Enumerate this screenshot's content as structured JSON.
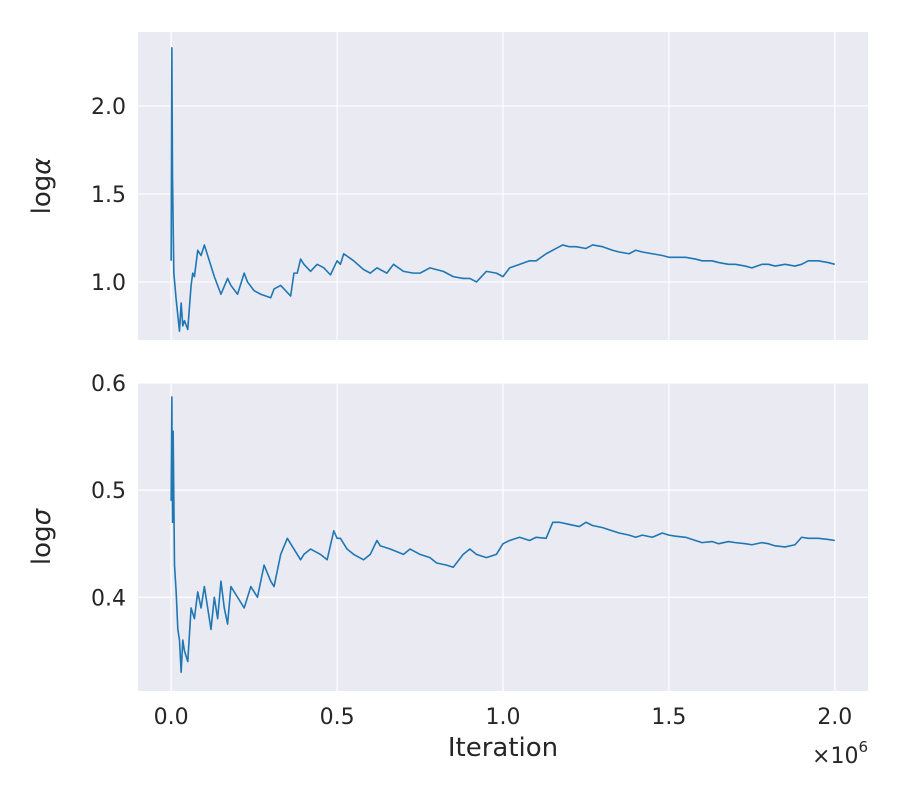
{
  "chart_data": [
    {
      "type": "line",
      "title": "",
      "xlabel": "",
      "ylabel": "logα",
      "ylabel_base": "log",
      "ylabel_symbol": "α",
      "xlim": [
        -0.1,
        2.1
      ],
      "ylim": [
        0.67,
        2.42
      ],
      "yticks": [
        1.0,
        1.5,
        2.0
      ],
      "ytick_labels": [
        "1.0",
        "1.5",
        "2.0"
      ],
      "xticks": [
        0.0,
        0.5,
        1.0,
        1.5,
        2.0
      ],
      "grid": true,
      "legend": "none",
      "color": "#1f77b4",
      "x": [
        0.0,
        0.002,
        0.004,
        0.008,
        0.015,
        0.025,
        0.03,
        0.035,
        0.04,
        0.05,
        0.06,
        0.065,
        0.07,
        0.08,
        0.09,
        0.1,
        0.11,
        0.13,
        0.15,
        0.17,
        0.18,
        0.2,
        0.22,
        0.23,
        0.25,
        0.27,
        0.3,
        0.31,
        0.33,
        0.36,
        0.37,
        0.38,
        0.39,
        0.4,
        0.42,
        0.44,
        0.46,
        0.48,
        0.5,
        0.51,
        0.52,
        0.55,
        0.58,
        0.6,
        0.62,
        0.65,
        0.67,
        0.7,
        0.73,
        0.75,
        0.78,
        0.8,
        0.82,
        0.85,
        0.88,
        0.9,
        0.92,
        0.93,
        0.95,
        0.98,
        1.0,
        1.02,
        1.05,
        1.08,
        1.1,
        1.13,
        1.16,
        1.18,
        1.2,
        1.22,
        1.25,
        1.27,
        1.3,
        1.33,
        1.35,
        1.38,
        1.4,
        1.42,
        1.45,
        1.48,
        1.5,
        1.52,
        1.55,
        1.58,
        1.6,
        1.63,
        1.65,
        1.68,
        1.7,
        1.73,
        1.75,
        1.78,
        1.8,
        1.82,
        1.85,
        1.88,
        1.9,
        1.92,
        1.95,
        1.98,
        2.0
      ],
      "y": [
        1.12,
        2.33,
        1.6,
        1.05,
        0.9,
        0.72,
        0.88,
        0.75,
        0.78,
        0.73,
        0.98,
        1.05,
        1.03,
        1.18,
        1.15,
        1.21,
        1.15,
        1.03,
        0.93,
        1.02,
        0.98,
        0.93,
        1.05,
        1.0,
        0.95,
        0.93,
        0.91,
        0.96,
        0.98,
        0.92,
        1.05,
        1.05,
        1.13,
        1.1,
        1.06,
        1.1,
        1.08,
        1.04,
        1.12,
        1.1,
        1.16,
        1.12,
        1.07,
        1.05,
        1.08,
        1.05,
        1.1,
        1.06,
        1.05,
        1.05,
        1.08,
        1.07,
        1.06,
        1.03,
        1.02,
        1.02,
        1.0,
        1.02,
        1.06,
        1.05,
        1.03,
        1.08,
        1.1,
        1.12,
        1.12,
        1.16,
        1.19,
        1.21,
        1.2,
        1.2,
        1.19,
        1.21,
        1.2,
        1.18,
        1.17,
        1.16,
        1.18,
        1.17,
        1.16,
        1.15,
        1.14,
        1.14,
        1.14,
        1.13,
        1.12,
        1.12,
        1.11,
        1.1,
        1.1,
        1.09,
        1.08,
        1.1,
        1.1,
        1.09,
        1.1,
        1.09,
        1.1,
        1.12,
        1.12,
        1.11,
        1.1
      ]
    },
    {
      "type": "line",
      "title": "",
      "xlabel": "Iteration",
      "ylabel": "logσ",
      "ylabel_base": "log",
      "ylabel_symbol": "σ",
      "xlim": [
        -0.1,
        2.1
      ],
      "ylim": [
        0.3125,
        0.6
      ],
      "yticks": [
        0.4,
        0.5,
        0.6
      ],
      "ytick_labels": [
        "0.4",
        "0.5",
        "0.6"
      ],
      "xticks": [
        0.0,
        0.5,
        1.0,
        1.5,
        2.0
      ],
      "xtick_labels": [
        "0.0",
        "0.5",
        "1.0",
        "1.5",
        "2.0"
      ],
      "x_offset_base": "×10",
      "x_offset_exp": "6",
      "grid": true,
      "legend": "none",
      "color": "#1f77b4",
      "x": [
        0.0,
        0.002,
        0.004,
        0.006,
        0.01,
        0.015,
        0.02,
        0.025,
        0.03,
        0.035,
        0.04,
        0.05,
        0.06,
        0.07,
        0.08,
        0.09,
        0.1,
        0.12,
        0.13,
        0.14,
        0.15,
        0.16,
        0.17,
        0.18,
        0.2,
        0.22,
        0.24,
        0.26,
        0.28,
        0.3,
        0.31,
        0.33,
        0.35,
        0.37,
        0.39,
        0.4,
        0.42,
        0.45,
        0.47,
        0.49,
        0.5,
        0.51,
        0.53,
        0.55,
        0.58,
        0.6,
        0.62,
        0.63,
        0.66,
        0.7,
        0.72,
        0.75,
        0.78,
        0.8,
        0.83,
        0.85,
        0.88,
        0.9,
        0.92,
        0.95,
        0.98,
        1.0,
        1.02,
        1.05,
        1.08,
        1.1,
        1.13,
        1.15,
        1.17,
        1.2,
        1.23,
        1.25,
        1.27,
        1.3,
        1.33,
        1.35,
        1.38,
        1.4,
        1.42,
        1.45,
        1.48,
        1.5,
        1.52,
        1.55,
        1.58,
        1.6,
        1.63,
        1.65,
        1.68,
        1.7,
        1.73,
        1.75,
        1.78,
        1.8,
        1.82,
        1.85,
        1.88,
        1.9,
        1.92,
        1.95,
        1.98,
        2.0
      ],
      "y": [
        0.49,
        0.587,
        0.47,
        0.555,
        0.43,
        0.405,
        0.37,
        0.36,
        0.33,
        0.36,
        0.35,
        0.34,
        0.39,
        0.38,
        0.405,
        0.39,
        0.41,
        0.37,
        0.4,
        0.38,
        0.415,
        0.39,
        0.375,
        0.41,
        0.4,
        0.39,
        0.41,
        0.4,
        0.43,
        0.415,
        0.41,
        0.44,
        0.455,
        0.445,
        0.435,
        0.44,
        0.445,
        0.44,
        0.435,
        0.462,
        0.455,
        0.455,
        0.445,
        0.44,
        0.435,
        0.44,
        0.453,
        0.448,
        0.445,
        0.44,
        0.445,
        0.44,
        0.437,
        0.432,
        0.43,
        0.428,
        0.44,
        0.445,
        0.44,
        0.437,
        0.44,
        0.45,
        0.453,
        0.456,
        0.453,
        0.456,
        0.455,
        0.47,
        0.47,
        0.468,
        0.466,
        0.47,
        0.467,
        0.465,
        0.462,
        0.46,
        0.458,
        0.456,
        0.458,
        0.456,
        0.46,
        0.458,
        0.457,
        0.456,
        0.453,
        0.451,
        0.452,
        0.45,
        0.452,
        0.451,
        0.45,
        0.449,
        0.451,
        0.45,
        0.448,
        0.447,
        0.449,
        0.456,
        0.455,
        0.455,
        0.454,
        0.453
      ]
    }
  ]
}
